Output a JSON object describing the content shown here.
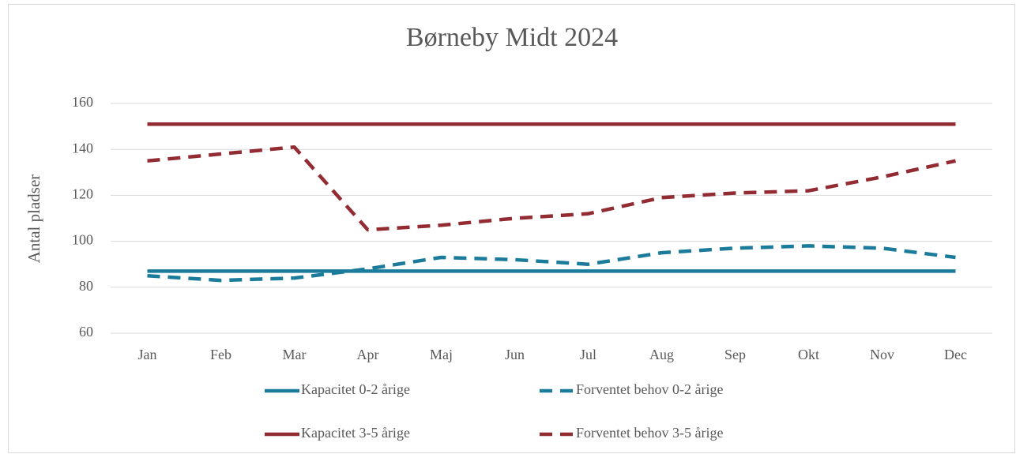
{
  "chart_data": {
    "type": "line",
    "title": "Børneby Midt 2024",
    "y_label": "Antal pladser",
    "categories": [
      "Jan",
      "Feb",
      "Mar",
      "Apr",
      "Maj",
      "Jun",
      "Jul",
      "Aug",
      "Sep",
      "Okt",
      "Nov",
      "Dec"
    ],
    "series": [
      {
        "name": "Kapacitet 0-2 årige",
        "color": "#1b7b9b",
        "style": "solid",
        "values": [
          87,
          87,
          87,
          87,
          87,
          87,
          87,
          87,
          87,
          87,
          87,
          87
        ]
      },
      {
        "name": "Forventet behov 0-2 årige",
        "color": "#1b7b9b",
        "style": "dashed",
        "values": [
          85,
          83,
          84,
          88,
          93,
          92,
          90,
          95,
          97,
          98,
          97,
          93
        ]
      },
      {
        "name": "Kapacitet 3-5 årige",
        "color": "#932b33",
        "style": "solid",
        "values": [
          151,
          151,
          151,
          151,
          151,
          151,
          151,
          151,
          151,
          151,
          151,
          151
        ]
      },
      {
        "name": "Forventet behov 3-5 årige",
        "color": "#932b33",
        "style": "dashed",
        "values": [
          135,
          138,
          141,
          105,
          107,
          110,
          112,
          119,
          121,
          122,
          128,
          135
        ]
      }
    ],
    "ylim": [
      60,
      160
    ],
    "yticks": [
      60,
      80,
      100,
      120,
      140,
      160
    ],
    "grid": true,
    "legend": "bottom"
  }
}
